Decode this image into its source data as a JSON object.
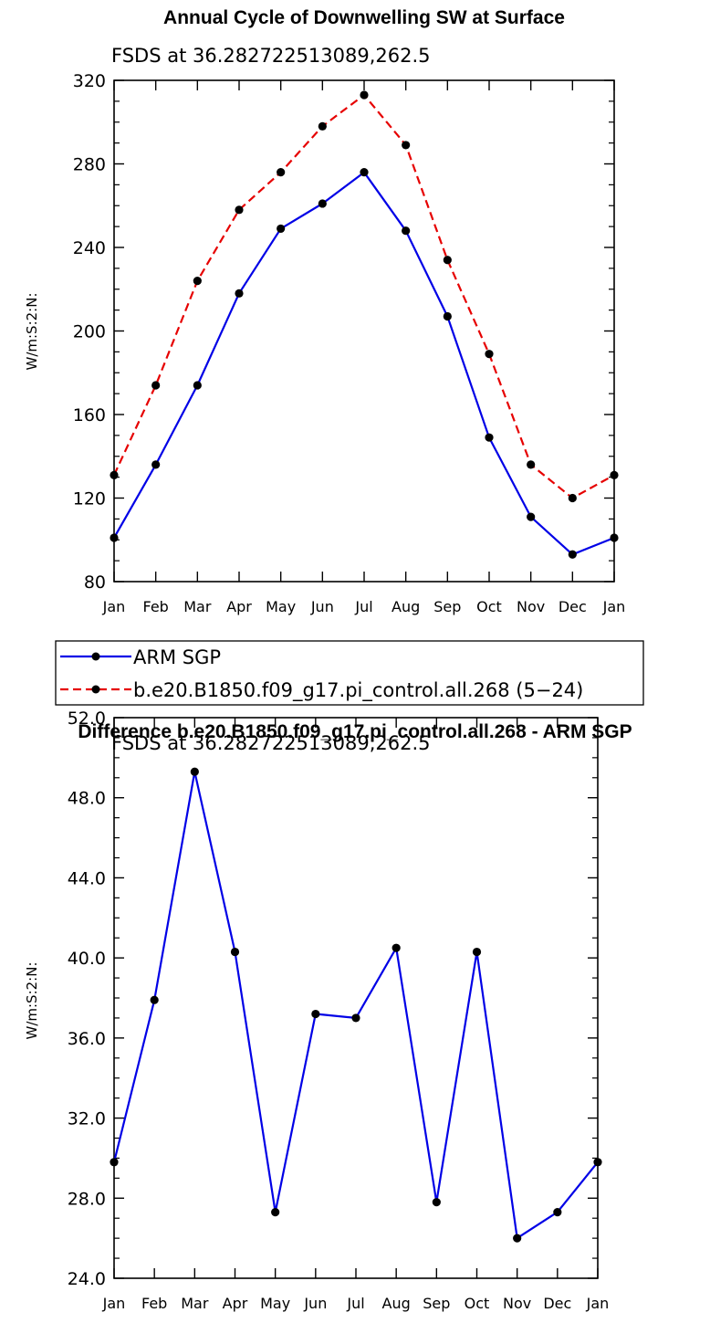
{
  "chart_data": [
    {
      "type": "line",
      "title": "Annual Cycle of Downwelling SW at Surface",
      "subtitle": "FSDS at 36.282722513089,262.5",
      "ylabel": "W/m:S:2:N:",
      "xlabel": "",
      "categories": [
        "Jan",
        "Feb",
        "Mar",
        "Apr",
        "May",
        "Jun",
        "Jul",
        "Aug",
        "Sep",
        "Oct",
        "Nov",
        "Dec",
        "Jan"
      ],
      "ylim": [
        80,
        320
      ],
      "yticks": [
        80,
        120,
        160,
        200,
        240,
        280,
        320
      ],
      "ytick_labels": [
        "80",
        "120",
        "160",
        "200",
        "240",
        "280",
        "320"
      ],
      "series": [
        {
          "name": "ARM SGP",
          "color": "#0000e6",
          "dash": "solid",
          "values": [
            101,
            136,
            174,
            218,
            249,
            261,
            276,
            248,
            207,
            149,
            111,
            93,
            101
          ]
        },
        {
          "name": "b.e20.B1850.f09_g17.pi_control.all.268 (5-24)",
          "color": "#e60000",
          "dash": "dashed",
          "values": [
            131,
            174,
            224,
            258,
            276,
            298,
            313,
            289,
            234,
            189,
            136,
            120,
            131
          ]
        }
      ],
      "legend": {
        "placement": "below",
        "entries": [
          "ARM SGP",
          "b.e20.B1850.f09_g17.pi_control.all.268 (5−24)"
        ]
      }
    },
    {
      "type": "line",
      "title": "Difference b.e20.B1850.f09_g17.pi_control.all.268 - ARM SGP",
      "subtitle": "FSDS at 36.282722513089,262.5",
      "ylabel": "W/m:S:2:N:",
      "xlabel": "",
      "categories": [
        "Jan",
        "Feb",
        "Mar",
        "Apr",
        "May",
        "Jun",
        "Jul",
        "Aug",
        "Sep",
        "Oct",
        "Nov",
        "Dec",
        "Jan"
      ],
      "ylim": [
        24,
        52
      ],
      "yticks": [
        24,
        28,
        32,
        36,
        40,
        44,
        48,
        52
      ],
      "ytick_labels": [
        "24.0",
        "28.0",
        "32.0",
        "36.0",
        "40.0",
        "44.0",
        "48.0",
        "52.0"
      ],
      "series": [
        {
          "name": "Difference",
          "color": "#0000e6",
          "dash": "solid",
          "values": [
            29.8,
            37.9,
            49.3,
            40.3,
            27.3,
            37.2,
            37.0,
            40.5,
            27.8,
            40.3,
            26.0,
            27.3,
            29.8
          ]
        }
      ]
    }
  ]
}
